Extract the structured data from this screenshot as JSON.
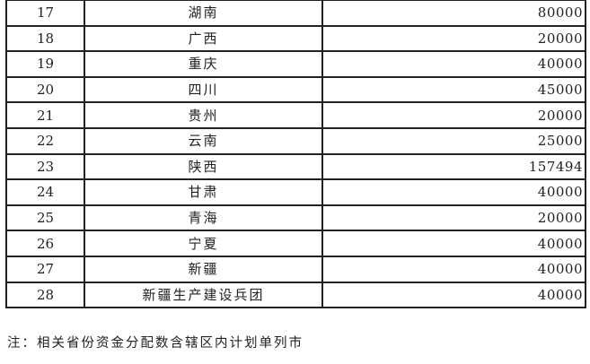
{
  "table": {
    "rows": [
      {
        "index": "17",
        "region": "湖南",
        "amount": "80000"
      },
      {
        "index": "18",
        "region": "广西",
        "amount": "20000"
      },
      {
        "index": "19",
        "region": "重庆",
        "amount": "40000"
      },
      {
        "index": "20",
        "region": "四川",
        "amount": "45000"
      },
      {
        "index": "21",
        "region": "贵州",
        "amount": "20000"
      },
      {
        "index": "22",
        "region": "云南",
        "amount": "25000"
      },
      {
        "index": "23",
        "region": "陕西",
        "amount": "157494"
      },
      {
        "index": "24",
        "region": "甘肃",
        "amount": "40000"
      },
      {
        "index": "25",
        "region": "青海",
        "amount": "20000"
      },
      {
        "index": "26",
        "region": "宁夏",
        "amount": "40000"
      },
      {
        "index": "27",
        "region": "新疆",
        "amount": "40000"
      },
      {
        "index": "28",
        "region": "新疆生产建设兵团",
        "amount": "40000"
      }
    ]
  },
  "note": "注：相关省份资金分配数含辖区内计划单列市"
}
